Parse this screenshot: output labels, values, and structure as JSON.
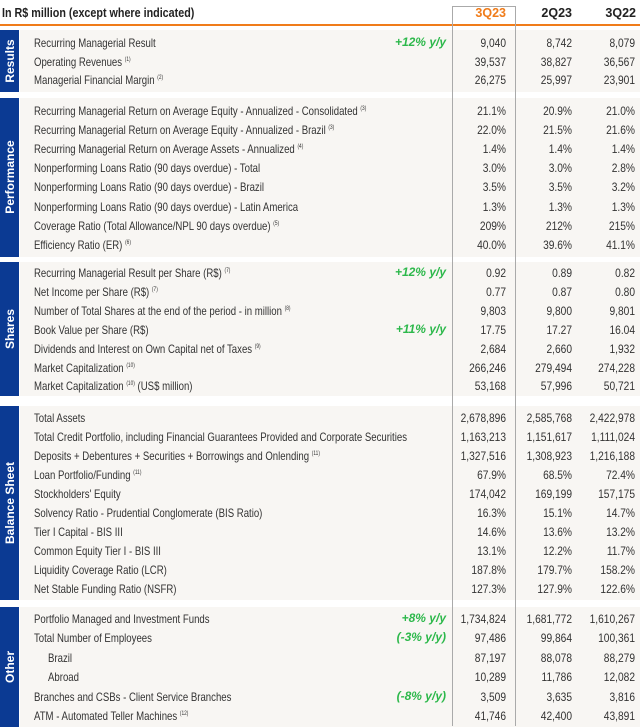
{
  "header": {
    "title": "In R$ million (except where indicated)",
    "columns": [
      "3Q23",
      "2Q23",
      "3Q22"
    ],
    "accent_color": "#f07c1a",
    "section_color": "#0b3a93",
    "growth_color": "#2db84b"
  },
  "sections": [
    {
      "name": "Results",
      "rows": [
        {
          "label": "Recurring Managerial Result",
          "note": "",
          "growth": "+12% y/y",
          "values": [
            "9,040",
            "8,742",
            "8,079"
          ]
        },
        {
          "label": "Operating Revenues",
          "note": "(1)",
          "growth": "",
          "values": [
            "39,537",
            "38,827",
            "36,567"
          ]
        },
        {
          "label": "Managerial Financial Margin",
          "note": "(2)",
          "growth": "",
          "values": [
            "26,275",
            "25,997",
            "23,901"
          ]
        }
      ]
    },
    {
      "name": "Performance",
      "rows": [
        {
          "label": "Recurring Managerial Return on Average Equity - Annualized - Consolidated",
          "note": "(3)",
          "growth": "",
          "values": [
            "21.1%",
            "20.9%",
            "21.0%"
          ]
        },
        {
          "label": "Recurring Managerial Return on Average Equity - Annualized - Brazil",
          "note": "(3)",
          "growth": "",
          "values": [
            "22.0%",
            "21.5%",
            "21.6%"
          ]
        },
        {
          "label": "Recurring Managerial Return on Average Assets - Annualized",
          "note": "(4)",
          "growth": "",
          "values": [
            "1.4%",
            "1.4%",
            "1.4%"
          ]
        },
        {
          "label": "Nonperforming Loans Ratio (90 days overdue) - Total",
          "note": "",
          "growth": "",
          "values": [
            "3.0%",
            "3.0%",
            "2.8%"
          ]
        },
        {
          "label": "Nonperforming Loans Ratio (90 days overdue) - Brazil",
          "note": "",
          "growth": "",
          "values": [
            "3.5%",
            "3.5%",
            "3.2%"
          ]
        },
        {
          "label": "Nonperforming Loans Ratio (90 days overdue) - Latin America",
          "note": "",
          "growth": "",
          "values": [
            "1.3%",
            "1.3%",
            "1.3%"
          ]
        },
        {
          "label": "Coverage Ratio (Total Allowance/NPL 90 days overdue)",
          "note": "(5)",
          "growth": "",
          "values": [
            "209%",
            "212%",
            "215%"
          ]
        },
        {
          "label": "Efficiency Ratio (ER)",
          "note": "(6)",
          "growth": "",
          "values": [
            "40.0%",
            "39.6%",
            "41.1%"
          ]
        }
      ]
    },
    {
      "name": "Shares",
      "rows": [
        {
          "label": "Recurring Managerial Result per Share (R$)",
          "note": "(7)",
          "growth": "+12% y/y",
          "values": [
            "0.92",
            "0.89",
            "0.82"
          ]
        },
        {
          "label": "Net Income per Share (R$)",
          "note": "(7)",
          "growth": "",
          "values": [
            "0.77",
            "0.87",
            "0.80"
          ]
        },
        {
          "label": "Number of Total Shares at the end of the period - in million",
          "note": "(8)",
          "growth": "",
          "values": [
            "9,803",
            "9,800",
            "9,801"
          ]
        },
        {
          "label": "Book Value per Share (R$)",
          "note": "",
          "growth": "+11% y/y",
          "values": [
            "17.75",
            "17.27",
            "16.04"
          ]
        },
        {
          "label": "Dividends and Interest on Own Capital net of Taxes",
          "note": "(9)",
          "growth": "",
          "values": [
            "2,684",
            "2,660",
            "1,932"
          ]
        },
        {
          "label": "Market Capitalization",
          "note": "(10)",
          "growth": "",
          "values": [
            "266,246",
            "279,494",
            "274,228"
          ]
        },
        {
          "label": "Market Capitalization",
          "note": "(10)",
          "suffix": "(US$ million)",
          "growth": "",
          "values": [
            "53,168",
            "57,996",
            "50,721"
          ]
        }
      ]
    },
    {
      "name": "Balance Sheet",
      "rows": [
        {
          "label": "Total Assets",
          "note": "",
          "growth": "",
          "values": [
            "2,678,896",
            "2,585,768",
            "2,422,978"
          ]
        },
        {
          "label": "Total Credit Portfolio, including Financial Guarantees Provided and Corporate Securities",
          "note": "",
          "growth": "",
          "values": [
            "1,163,213",
            "1,151,617",
            "1,111,024"
          ]
        },
        {
          "label": "Deposits + Debentures + Securities + Borrowings and Onlending",
          "note": "(11)",
          "growth": "",
          "values": [
            "1,327,516",
            "1,308,923",
            "1,216,188"
          ]
        },
        {
          "label": "Loan Portfolio/Funding",
          "note": "(11)",
          "growth": "",
          "values": [
            "67.9%",
            "68.5%",
            "72.4%"
          ]
        },
        {
          "label": "Stockholders' Equity",
          "note": "",
          "growth": "",
          "values": [
            "174,042",
            "169,199",
            "157,175"
          ]
        },
        {
          "label": "Solvency Ratio - Prudential Conglomerate (BIS Ratio)",
          "note": "",
          "growth": "",
          "values": [
            "16.3%",
            "15.1%",
            "14.7%"
          ]
        },
        {
          "label": "Tier I Capital - BIS III",
          "note": "",
          "growth": "",
          "values": [
            "14.6%",
            "13.6%",
            "13.2%"
          ]
        },
        {
          "label": "Common Equity Tier I - BIS III",
          "note": "",
          "growth": "",
          "values": [
            "13.1%",
            "12.2%",
            "11.7%"
          ]
        },
        {
          "label": "Liquidity Coverage Ratio (LCR)",
          "note": "",
          "growth": "",
          "values": [
            "187.8%",
            "179.7%",
            "158.2%"
          ]
        },
        {
          "label": "Net Stable Funding Ratio (NSFR)",
          "note": "",
          "growth": "",
          "values": [
            "127.3%",
            "127.9%",
            "122.6%"
          ]
        }
      ]
    },
    {
      "name": "Other",
      "rows": [
        {
          "label": "Portfolio Managed and Investment Funds",
          "note": "",
          "growth": "+8% y/y",
          "values": [
            "1,734,824",
            "1,681,772",
            "1,610,267"
          ]
        },
        {
          "label": "Total Number of Employees",
          "note": "",
          "growth": "(-3% y/y)",
          "values": [
            "97,486",
            "99,864",
            "100,361"
          ]
        },
        {
          "label": "Brazil",
          "note": "",
          "growth": "",
          "indent": true,
          "values": [
            "87,197",
            "88,078",
            "88,279"
          ]
        },
        {
          "label": "Abroad",
          "note": "",
          "growth": "",
          "indent": true,
          "values": [
            "10,289",
            "11,786",
            "12,082"
          ]
        },
        {
          "label": "Branches and CSBs - Client Service Branches",
          "note": "",
          "growth": "(-8% y/y)",
          "values": [
            "3,509",
            "3,635",
            "3,816"
          ]
        },
        {
          "label": "ATM - Automated Teller Machines",
          "note": "(12)",
          "growth": "",
          "values": [
            "41,746",
            "42,400",
            "43,891"
          ]
        }
      ]
    }
  ]
}
